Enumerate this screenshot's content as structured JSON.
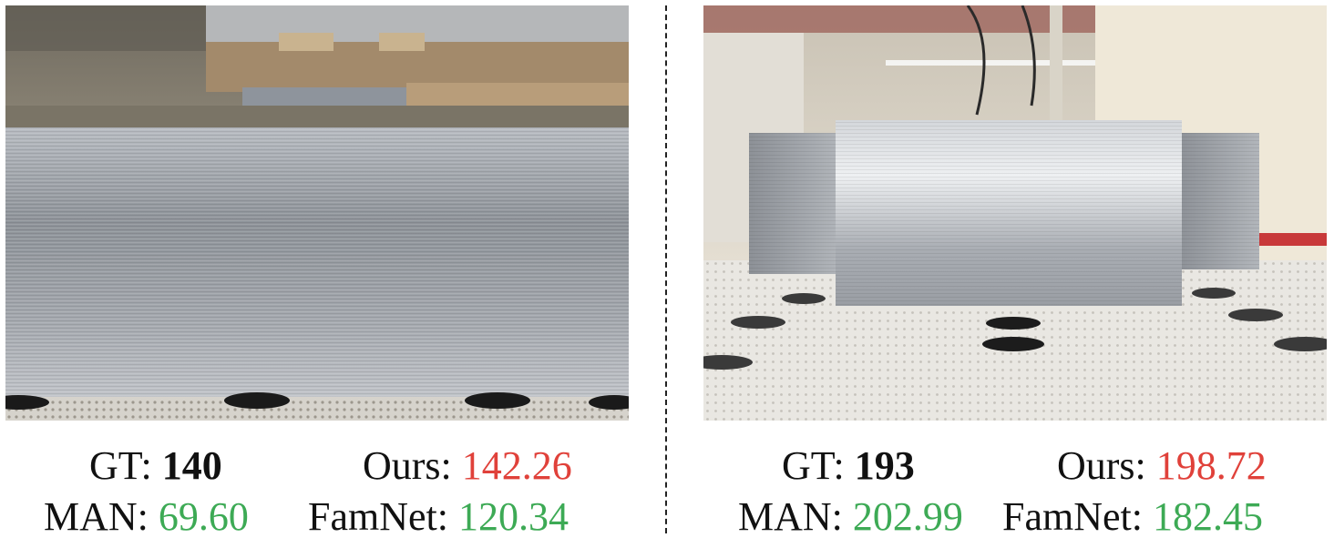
{
  "panels": [
    {
      "gt_label": "GT:",
      "gt_value": "140",
      "ours_label": "Ours:",
      "ours_value": "142.26",
      "man_label": "MAN:",
      "man_value": "69.60",
      "famnet_label": "FamNet:",
      "famnet_value": "120.34"
    },
    {
      "gt_label": "GT:",
      "gt_value": "193",
      "ours_label": "Ours:",
      "ours_value": "198.72",
      "man_label": "MAN:",
      "man_value": "202.99",
      "famnet_label": "FamNet:",
      "famnet_value": "182.45"
    }
  ],
  "colors": {
    "ours": "#e0413a",
    "baseline": "#3daa55"
  }
}
